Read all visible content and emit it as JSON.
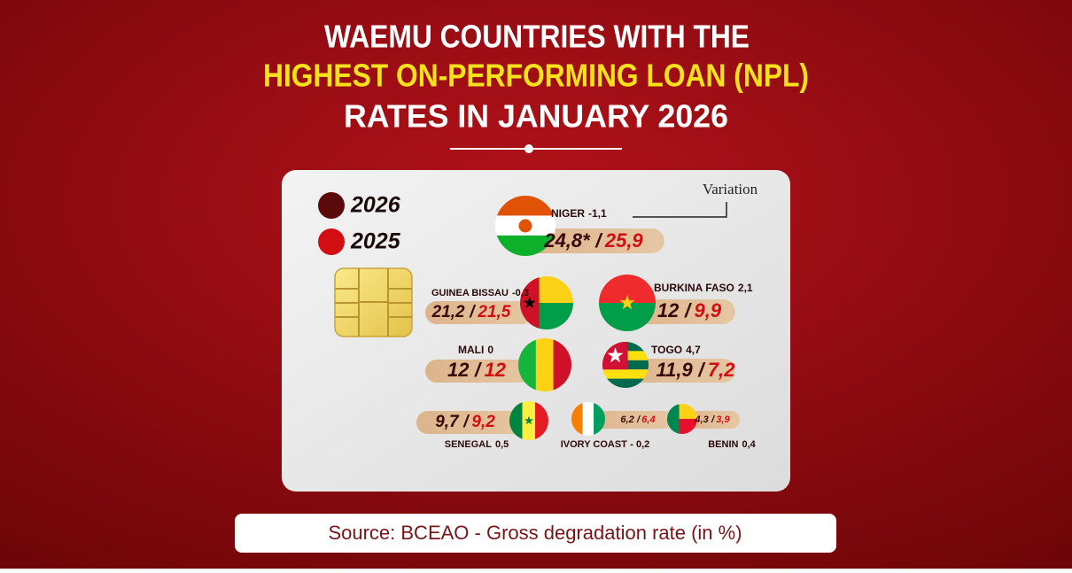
{
  "header": {
    "line1": "WAEMU COUNTRIES WITH THE",
    "line2": "HIGHEST ON-PERFORMING LOAN (NPL)",
    "line3": "RATES IN JANUARY 2026"
  },
  "legend": [
    "2026",
    "2025"
  ],
  "variation_label": "Variation",
  "separator": "/",
  "countries": [
    {
      "name": "NIGER",
      "variation": "-1,1",
      "value_2026": "24,8*",
      "value_2025": "25,9"
    },
    {
      "name": "GUINEA BISSAU",
      "variation": "-0,3",
      "value_2026": "21,2",
      "value_2025": "21,5"
    },
    {
      "name": "BURKINA FASO",
      "variation": "2,1",
      "value_2026": "12",
      "value_2025": "9,9"
    },
    {
      "name": "MALI",
      "variation": "0",
      "value_2026": "12",
      "value_2025": "12"
    },
    {
      "name": "TOGO",
      "variation": "4,7",
      "value_2026": "11,9",
      "value_2025": "7,2"
    },
    {
      "name": "SENEGAL",
      "variation": "0,5",
      "value_2026": "9,7",
      "value_2025": "9,2"
    },
    {
      "name": "IVORY COAST",
      "variation": "- 0,2",
      "value_2026": "6,2",
      "value_2025": "6,4"
    },
    {
      "name": "BENIN",
      "variation": "0,4",
      "value_2026": "4,3",
      "value_2025": "3,9"
    }
  ],
  "source": "Source: BCEAO - Gross degradation rate (in %)"
}
